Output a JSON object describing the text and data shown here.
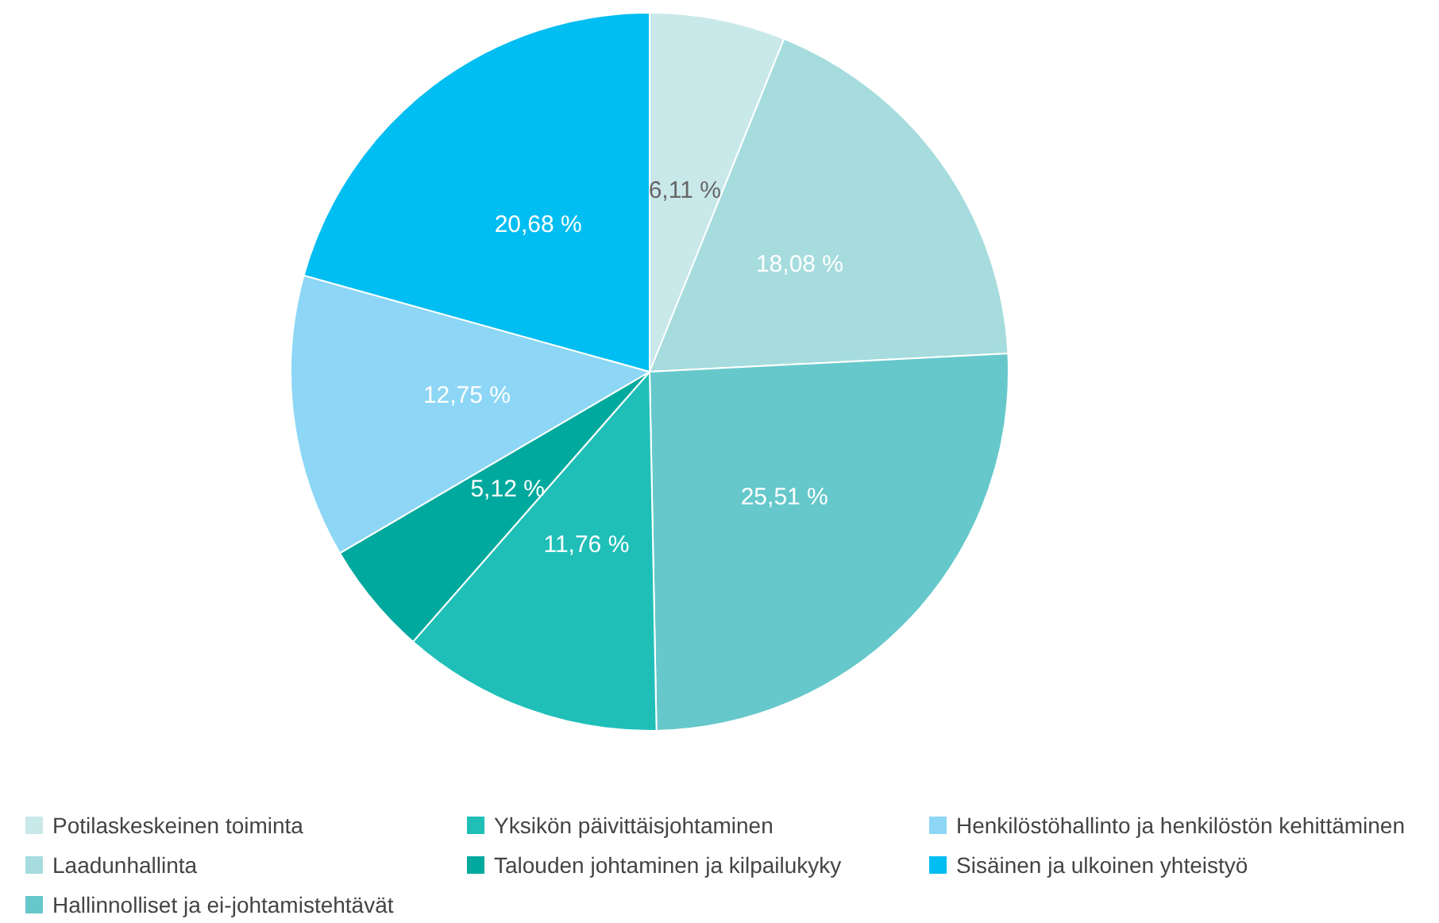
{
  "chart_data": {
    "type": "pie",
    "categories": [
      "Potilaskeskeinen toiminta",
      "Laadunhallinta",
      "Hallinnolliset ja ei-johtamistehtävät",
      "Yksikön päivittäisjohtaminen",
      "Talouden johtaminen ja kilpailukyky",
      "Henkilöstöhallinto ja henkilöstön kehittäminen",
      "Sisäinen ja ulkoinen yhteistyö"
    ],
    "values": [
      6.11,
      18.08,
      25.51,
      11.76,
      5.12,
      12.75,
      20.68
    ],
    "colors": [
      "#c9e8ea",
      "#a6dcdd",
      "#66c8cb",
      "#1fbfb8",
      "#00a99d",
      "#8dd6f5",
      "#00bdf2"
    ],
    "value_labels": [
      "6,11 %",
      "18,08 %",
      "25,51 %",
      "11,76 %",
      "5,12 %",
      "12,75 %",
      "20,68 %"
    ],
    "legend": "bottom"
  }
}
